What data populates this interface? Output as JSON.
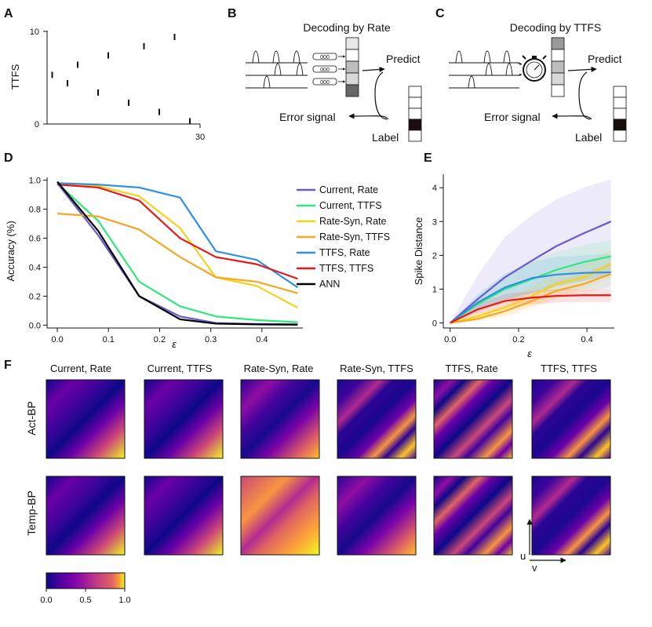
{
  "colors": {
    "purple": "#6a5acd",
    "green": "#2ee87a",
    "yellow": "#f5d21a",
    "orange": "#f5a623",
    "blue": "#2f8fe6",
    "red": "#e31a1c",
    "black": "#000000"
  },
  "panel_letters": {
    "a": "A",
    "b": "B",
    "c": "C",
    "d": "D",
    "e": "E",
    "f": "F"
  },
  "chart_data": [
    {
      "panel": "A",
      "type": "scatter",
      "ylabel": "TTFS",
      "yticks": [
        "10",
        "0"
      ],
      "xtick_end": "30",
      "xlim": [
        0,
        30
      ],
      "ylim": [
        0,
        10
      ],
      "points": [
        {
          "x": 1,
          "y": 5.3
        },
        {
          "x": 4,
          "y": 4.4
        },
        {
          "x": 6,
          "y": 6.4
        },
        {
          "x": 10,
          "y": 3.4
        },
        {
          "x": 12,
          "y": 7.4
        },
        {
          "x": 16,
          "y": 2.3
        },
        {
          "x": 19,
          "y": 8.4
        },
        {
          "x": 22,
          "y": 1.3
        },
        {
          "x": 25,
          "y": 9.4
        },
        {
          "x": 28,
          "y": 0.3
        }
      ]
    },
    {
      "panel": "D",
      "type": "line",
      "xlabel": "ε",
      "ylabel": "Accuracy (%)",
      "x": [
        0,
        0.08,
        0.16,
        0.24,
        0.31,
        0.39,
        0.47
      ],
      "xticks": [
        "0.0",
        "0.1",
        "0.2",
        "0.3",
        "0.4"
      ],
      "yticks": [
        "0.0",
        "0.2",
        "0.4",
        "0.6",
        "0.8",
        "1.0"
      ],
      "xlim": [
        -0.02,
        0.48
      ],
      "ylim": [
        -0.02,
        1.02
      ],
      "legend_position": "right",
      "series": [
        {
          "name": "Current, Rate",
          "color": "purple",
          "values": [
            0.98,
            0.62,
            0.2,
            0.06,
            0.015,
            0.008,
            0.005
          ]
        },
        {
          "name": "Current, TTFS",
          "color": "green",
          "values": [
            0.98,
            0.72,
            0.3,
            0.13,
            0.06,
            0.035,
            0.02
          ]
        },
        {
          "name": "Rate-Syn, Rate",
          "color": "yellow",
          "values": [
            0.98,
            0.96,
            0.89,
            0.67,
            0.33,
            0.27,
            0.12
          ]
        },
        {
          "name": "Rate-Syn, TTFS",
          "color": "orange",
          "values": [
            0.77,
            0.75,
            0.66,
            0.47,
            0.33,
            0.3,
            0.22
          ]
        },
        {
          "name": "TTFS, Rate",
          "color": "blue",
          "values": [
            0.98,
            0.97,
            0.95,
            0.88,
            0.51,
            0.45,
            0.26
          ]
        },
        {
          "name": "TTFS, TTFS",
          "color": "red",
          "values": [
            0.97,
            0.95,
            0.86,
            0.6,
            0.47,
            0.42,
            0.32
          ]
        },
        {
          "name": "ANN",
          "color": "black",
          "values": [
            0.99,
            0.65,
            0.2,
            0.04,
            0.01,
            0.005,
            0.003
          ]
        }
      ]
    },
    {
      "panel": "E",
      "type": "line",
      "xlabel": "ε",
      "ylabel": "Spike Distance",
      "x": [
        0,
        0.08,
        0.16,
        0.24,
        0.31,
        0.39,
        0.47
      ],
      "xticks": [
        "0.0",
        "0.2",
        "0.4"
      ],
      "yticks": [
        "0",
        "1",
        "2",
        "3",
        "4"
      ],
      "xlim": [
        -0.02,
        0.48
      ],
      "ylim": [
        -0.15,
        4.4
      ],
      "series": [
        {
          "color": "purple",
          "values": [
            0,
            0.7,
            1.35,
            1.85,
            2.27,
            2.65,
            3.0
          ],
          "upper": [
            0,
            1.4,
            2.55,
            3.2,
            3.65,
            4.0,
            4.25
          ],
          "lower": [
            0,
            0.3,
            0.6,
            0.9,
            1.1,
            1.25,
            1.4
          ]
        },
        {
          "color": "green",
          "values": [
            0,
            0.55,
            1.0,
            1.3,
            1.57,
            1.8,
            1.97
          ],
          "upper": [
            0,
            0.8,
            1.45,
            1.85,
            2.1,
            2.3,
            2.45
          ],
          "lower": [
            0,
            0.35,
            0.65,
            0.85,
            1.05,
            1.25,
            1.45
          ]
        },
        {
          "color": "yellow",
          "values": [
            0,
            0.2,
            0.45,
            0.8,
            1.15,
            1.35,
            1.75
          ],
          "upper": [
            0,
            0.35,
            0.7,
            1.1,
            1.5,
            1.75,
            2.15
          ],
          "lower": [
            0,
            0.1,
            0.25,
            0.5,
            0.8,
            1.0,
            1.35
          ]
        },
        {
          "color": "orange",
          "values": [
            0,
            0.12,
            0.35,
            0.65,
            0.95,
            1.15,
            1.45
          ],
          "upper": [
            0,
            0.25,
            0.55,
            0.9,
            1.25,
            1.45,
            1.8
          ],
          "lower": [
            0,
            0.05,
            0.2,
            0.45,
            0.7,
            0.85,
            1.1
          ]
        },
        {
          "color": "blue",
          "values": [
            0,
            0.6,
            1.05,
            1.33,
            1.43,
            1.48,
            1.5
          ],
          "upper": [
            0,
            0.85,
            1.45,
            1.8,
            1.95,
            2.0,
            2.05
          ],
          "lower": [
            0,
            0.35,
            0.7,
            0.9,
            0.95,
            1.0,
            1.0
          ]
        },
        {
          "color": "red",
          "values": [
            0,
            0.4,
            0.65,
            0.75,
            0.8,
            0.82,
            0.82
          ],
          "upper": [
            0,
            0.55,
            0.85,
            0.95,
            1.0,
            1.0,
            1.0
          ],
          "lower": [
            0,
            0.25,
            0.45,
            0.55,
            0.6,
            0.62,
            0.62
          ]
        }
      ]
    },
    {
      "panel": "F",
      "type": "heatmap",
      "columns": [
        "Current, Rate",
        "Current, TTFS",
        "Rate-Syn, Rate",
        "Rate-Syn, TTFS",
        "TTFS, Rate",
        "TTFS, TTFS"
      ],
      "rows": [
        "Act-BP",
        "Temp-BP"
      ],
      "colorbar_ticks": [
        "0.0",
        "0.5",
        "1.0"
      ],
      "colorbar_range": [
        0,
        1
      ],
      "axis_u": "u",
      "axis_v": "v"
    }
  ],
  "diagram_b": {
    "title": "Decoding by Rate",
    "predict": "Predict",
    "error": "Error signal",
    "label": "Label"
  },
  "diagram_c": {
    "title": "Decoding by TTFS",
    "predict": "Predict",
    "error": "Error signal",
    "label": "Label"
  }
}
